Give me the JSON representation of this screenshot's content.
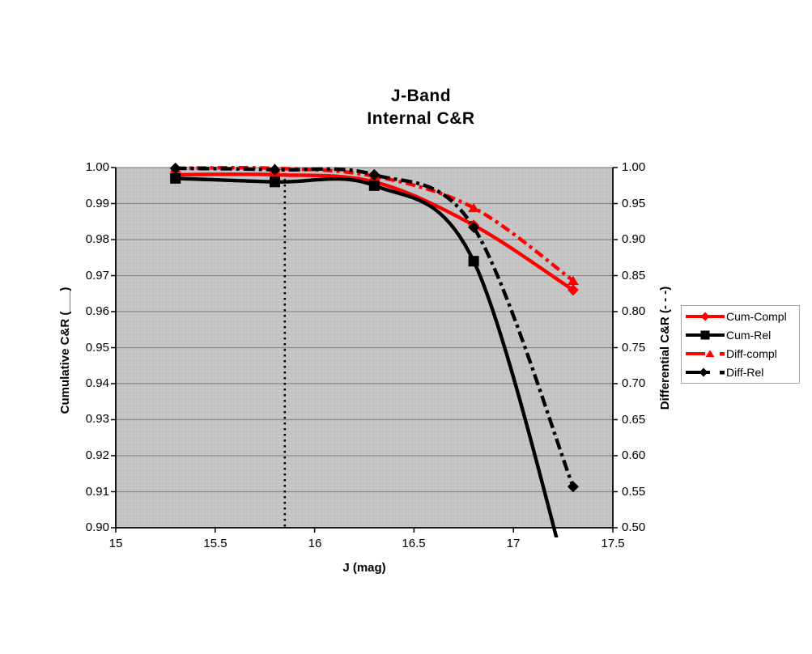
{
  "title": {
    "line1": "J-Band",
    "line2": "Internal C&R"
  },
  "axes": {
    "x": {
      "label": "J (mag)",
      "ticks": [
        "15",
        "15.5",
        "16",
        "16.5",
        "17",
        "17.5"
      ]
    },
    "left": {
      "label": "Cumulative C&R (___)",
      "ticks": [
        "1.00",
        "0.99",
        "0.98",
        "0.97",
        "0.96",
        "0.95",
        "0.94",
        "0.93",
        "0.92",
        "0.91",
        "0.90"
      ]
    },
    "right": {
      "label": "Differential C&R (- - -)",
      "ticks": [
        "1.00",
        "0.95",
        "0.90",
        "0.85",
        "0.80",
        "0.75",
        "0.70",
        "0.65",
        "0.60",
        "0.55",
        "0.50"
      ]
    }
  },
  "colors": {
    "accent_red": "#FF0000",
    "series_black": "#000000",
    "plot_background": "#C6C6C6",
    "plot_dot_pattern": "#B9B9B9",
    "gridline": "#8A8A8A",
    "axis_line": "#000000",
    "legend_border": "#A3A3A3"
  },
  "chart_data": {
    "type": "line",
    "x": [
      15.3,
      15.8,
      16.3,
      16.8,
      17.3
    ],
    "xlim": [
      15,
      17.5
    ],
    "left_ylim": [
      0.9,
      1.0
    ],
    "right_ylim": [
      0.5,
      1.0
    ],
    "grid": true,
    "legend_position": "right",
    "title": "J-Band Internal C&R",
    "xlabel": "J (mag)",
    "ylabel_left": "Cumulative C&R (___)",
    "ylabel_right": "Differential C&R (- - -)",
    "series": [
      {
        "name": "Cum-Compl",
        "axis": "left",
        "color": "#FF0000",
        "line": "solid",
        "marker": "diamond",
        "values": [
          0.998,
          0.998,
          0.996,
          0.984,
          0.966
        ]
      },
      {
        "name": "Cum-Rel",
        "axis": "left",
        "color": "#000000",
        "line": "solid",
        "marker": "square",
        "values": [
          0.997,
          0.996,
          0.995,
          0.974,
          0.88
        ],
        "note": "final point lies below the 0.90 axis minimum; curve exits the plot bottom near J=17.2"
      },
      {
        "name": "Diff-compl",
        "axis": "right",
        "color": "#FF0000",
        "line": "dashdot",
        "marker": "triangle",
        "values": [
          0.999,
          0.999,
          0.988,
          0.944,
          0.843
        ]
      },
      {
        "name": "Diff-Rel",
        "axis": "right",
        "color": "#000000",
        "line": "dashdot",
        "marker": "diamond",
        "values": [
          0.999,
          0.997,
          0.99,
          0.917,
          0.557
        ]
      }
    ],
    "reference_line": {
      "x": 15.85,
      "style": "dotted",
      "color": "#000000"
    }
  }
}
